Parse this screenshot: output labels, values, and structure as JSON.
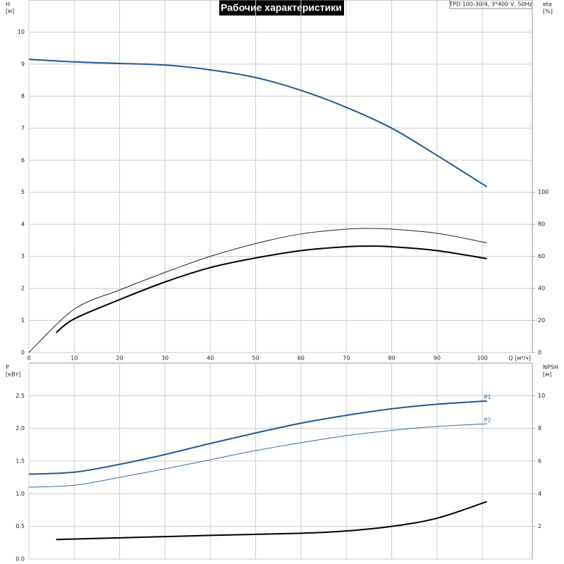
{
  "title": "Рабочие характеристики",
  "model": "TPD 100-30/4, 3*400 V, 50Hz",
  "chart_data": [
    {
      "type": "line",
      "ylabel": [
        "H",
        "[м]"
      ],
      "y2label": [
        "eta",
        "[%]"
      ],
      "xlabel": "Q [м³/ч]",
      "xlim": [
        0,
        111
      ],
      "xticks": [
        0,
        10,
        20,
        30,
        40,
        50,
        60,
        70,
        80,
        90,
        100
      ],
      "ylim": [
        0,
        11
      ],
      "yticks": [
        0,
        1,
        2,
        3,
        4,
        5,
        6,
        7,
        8,
        9,
        10
      ],
      "y2lim": [
        0,
        220
      ],
      "y2ticks": [
        0,
        20,
        40,
        60,
        80,
        100
      ],
      "grid": true,
      "series": [
        {
          "color": "#1f5a96",
          "x": [
            0,
            10,
            20,
            30,
            40,
            50,
            60,
            70,
            80,
            90,
            101
          ],
          "values": [
            9.15,
            9.07,
            9.02,
            8.97,
            8.82,
            8.58,
            8.18,
            7.65,
            7.0,
            6.15,
            5.17
          ]
        },
        {
          "color": "#222222",
          "axis": "y2",
          "x": [
            0,
            10,
            20,
            30,
            40,
            50,
            60,
            70,
            76,
            80,
            90,
            101
          ],
          "values": [
            0,
            27,
            39,
            50,
            60,
            68,
            74,
            77,
            77.4,
            77,
            74.4,
            68.4
          ]
        },
        {
          "color": "#000000",
          "axis": "y2",
          "x": [
            6,
            10,
            20,
            30,
            40,
            50,
            60,
            70,
            76,
            80,
            90,
            101
          ],
          "values": [
            12.4,
            21,
            33,
            44,
            53,
            59,
            63.6,
            66,
            66.4,
            66,
            63.6,
            58.6
          ]
        }
      ]
    },
    {
      "type": "line",
      "ylabel": [
        "P",
        "[кВт]"
      ],
      "y2label": [
        "NPSH",
        "[м]"
      ],
      "xlim": [
        0,
        111
      ],
      "xticks": [
        0,
        10,
        20,
        30,
        40,
        50,
        60,
        70,
        80,
        90,
        100
      ],
      "ylim": [
        0,
        3
      ],
      "yticks": [
        {
          "value": 0,
          "label": "0.0"
        },
        0.5,
        {
          "value": 1,
          "label": "1.0"
        },
        1.5,
        {
          "value": 2,
          "label": "2.0"
        },
        2.5
      ],
      "y2lim": [
        0,
        12
      ],
      "y2ticks": [
        2,
        4,
        6,
        8,
        10
      ],
      "grid": true,
      "series": [
        {
          "name": "P1",
          "color": "#1f5a96",
          "x": [
            0,
            10,
            20,
            30,
            40,
            50,
            60,
            70,
            80,
            90,
            101
          ],
          "values": [
            1.3,
            1.33,
            1.45,
            1.6,
            1.77,
            1.93,
            2.08,
            2.2,
            2.3,
            2.37,
            2.42
          ]
        },
        {
          "name": "P2",
          "color": "#3a6d9e",
          "x": [
            0,
            10,
            20,
            30,
            40,
            50,
            60,
            70,
            80,
            90,
            101
          ],
          "values": [
            1.1,
            1.13,
            1.25,
            1.38,
            1.52,
            1.66,
            1.78,
            1.89,
            1.97,
            2.03,
            2.07
          ]
        },
        {
          "color": "#000000",
          "axis": "y2",
          "x": [
            6,
            20,
            40,
            60,
            70,
            80,
            90,
            101
          ],
          "values": [
            1.2,
            1.3,
            1.45,
            1.58,
            1.72,
            2.0,
            2.5,
            3.52
          ]
        }
      ]
    }
  ]
}
